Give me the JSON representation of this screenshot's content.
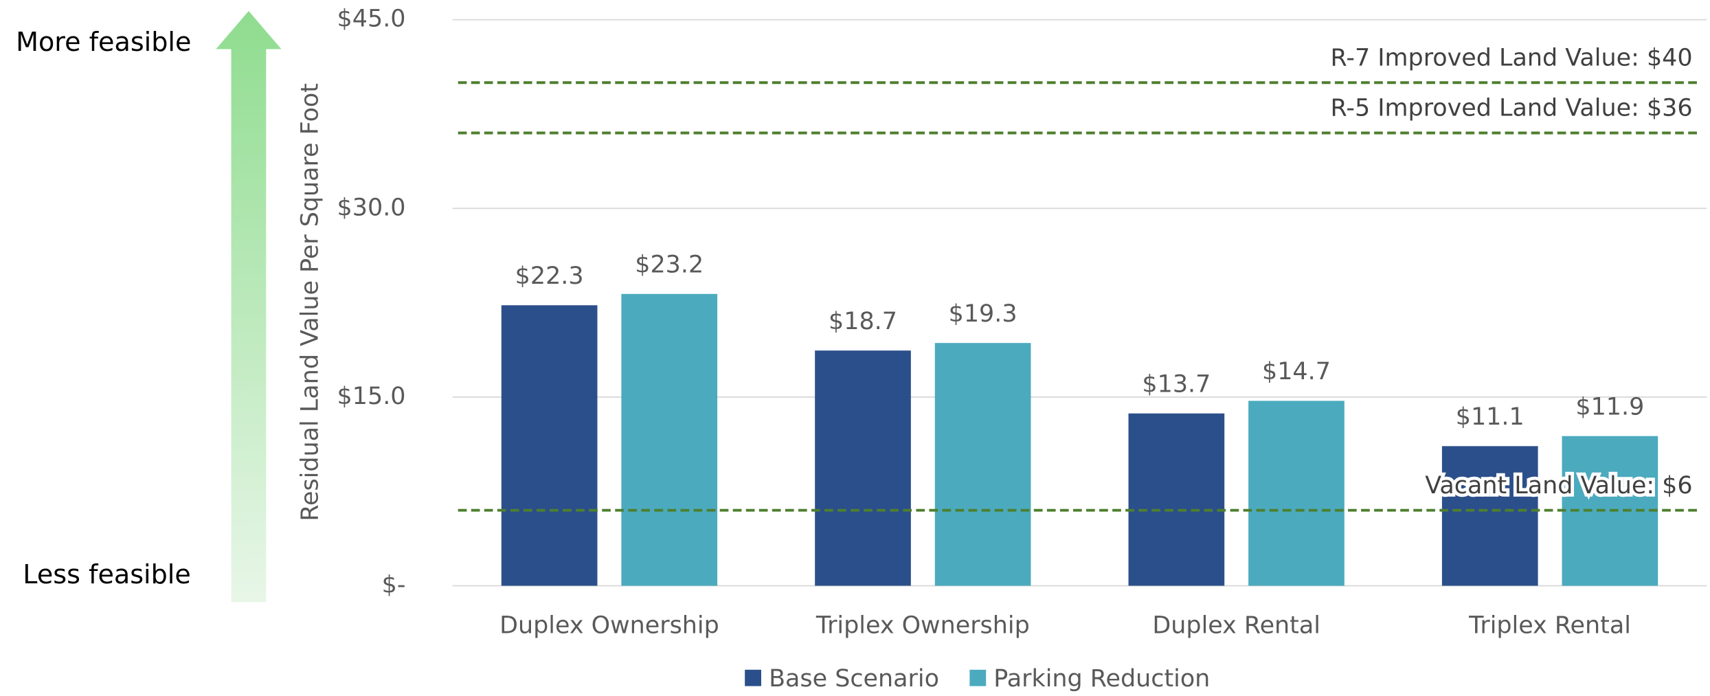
{
  "chart_data": {
    "type": "bar",
    "y_label": "Residual Land Value Per Square Foot",
    "side_labels": {
      "top": "More feasible",
      "bottom": "Less feasible"
    },
    "categories": [
      "Duplex Ownership",
      "Triplex Ownership",
      "Duplex Rental",
      "Triplex Rental"
    ],
    "series": [
      {
        "name": "Base Scenario",
        "color": "#2b4f8a",
        "values": [
          22.3,
          18.7,
          13.7,
          11.1
        ],
        "value_labels": [
          "$22.3",
          "$18.7",
          "$13.7",
          "$11.1"
        ]
      },
      {
        "name": "Parking Reduction",
        "color": "#4baabe",
        "values": [
          23.2,
          19.3,
          14.7,
          11.9
        ],
        "value_labels": [
          "$23.2",
          "$19.3",
          "$14.7",
          "$11.9"
        ]
      }
    ],
    "ylim": [
      0,
      45
    ],
    "yticks": [
      {
        "value": 0,
        "label": "$-"
      },
      {
        "value": 15,
        "label": "$15.0"
      },
      {
        "value": 30,
        "label": "$30.0"
      },
      {
        "value": 45,
        "label": "$45.0"
      }
    ],
    "grid": true,
    "reference_lines": [
      {
        "label": "R-7 Improved Land Value: $40",
        "value": 40
      },
      {
        "label": "R-5 Improved Land Value: $36",
        "value": 36
      },
      {
        "label": "Vacant Land Value: $6",
        "value": 6
      }
    ],
    "reference_color": "#4e7f2e",
    "legend": "bottom"
  }
}
